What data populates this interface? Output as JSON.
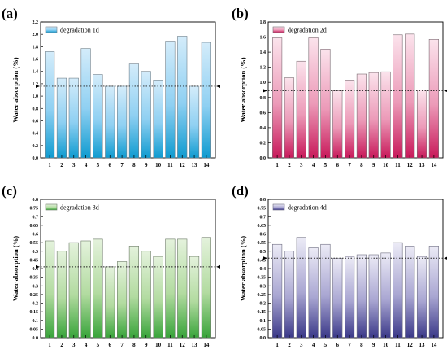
{
  "figure": {
    "panels": [
      {
        "label": "(a)",
        "legend": "degradation 1d",
        "ylabel": "Water absorption (%)"
      },
      {
        "label": "(b)",
        "legend": "degradation 2d",
        "ylabel": "Water absorption (%)"
      },
      {
        "label": "(c)",
        "legend": "degradation 3d",
        "ylabel": "Water absorption (%)"
      },
      {
        "label": "(d)",
        "legend": "degradation 4d",
        "ylabel": "Water absorption (%)"
      }
    ]
  },
  "chart_data": [
    {
      "type": "bar",
      "title": "",
      "panel_label": "(a)",
      "xlabel": "",
      "ylabel": "Water absorption (%)",
      "categories": [
        "1",
        "2",
        "3",
        "4",
        "5",
        "6",
        "7",
        "8",
        "9",
        "10",
        "11",
        "12",
        "13",
        "14"
      ],
      "series": [
        {
          "name": "degradation 1d",
          "values": [
            1.72,
            1.29,
            1.29,
            1.77,
            1.35,
            1.16,
            1.16,
            1.52,
            1.4,
            1.26,
            1.89,
            1.97,
            1.16,
            1.87
          ]
        }
      ],
      "ylim": [
        0,
        2.2
      ],
      "yticks": [
        0.0,
        0.2,
        0.4,
        0.6,
        0.8,
        1.0,
        1.2,
        1.4,
        1.6,
        1.8,
        2.0,
        2.2
      ],
      "ytick_labels": [
        "0.0",
        "0.2",
        "0.4",
        "0.6",
        "0.8",
        "1.0",
        "1.2",
        "1.4",
        "1.6",
        "1.8",
        "2.0",
        "2.2"
      ],
      "reference_line": 1.16,
      "legend_position": "top-left",
      "grid": false,
      "colors": {
        "top": "#d4ecfa",
        "mid": "#8fd0f2",
        "bottom": "#0f9bd0",
        "line": "#6f7f8a"
      }
    },
    {
      "type": "bar",
      "title": "",
      "panel_label": "(b)",
      "xlabel": "",
      "ylabel": "Water absorption (%)",
      "categories": [
        "1",
        "2",
        "3",
        "4",
        "5",
        "6",
        "7",
        "8",
        "9",
        "10",
        "11",
        "12",
        "13",
        "14"
      ],
      "series": [
        {
          "name": "degradation 2d",
          "values": [
            1.59,
            1.06,
            1.28,
            1.59,
            1.44,
            0.89,
            1.03,
            1.11,
            1.13,
            1.14,
            1.63,
            1.64,
            0.9,
            1.57
          ]
        }
      ],
      "ylim": [
        0,
        1.8
      ],
      "yticks": [
        0.0,
        0.2,
        0.4,
        0.6,
        0.8,
        1.0,
        1.2,
        1.4,
        1.6,
        1.8
      ],
      "ytick_labels": [
        "0.0",
        "0.2",
        "0.4",
        "0.6",
        "0.8",
        "1.0",
        "1.2",
        "1.4",
        "1.6",
        "1.8"
      ],
      "reference_line": 0.89,
      "legend_position": "top-left",
      "grid": false,
      "colors": {
        "top": "#fbe3ec",
        "mid": "#ec9ab8",
        "bottom": "#c8195a",
        "line": "#7a6870"
      }
    },
    {
      "type": "bar",
      "title": "",
      "panel_label": "(c)",
      "xlabel": "",
      "ylabel": "Water absorption (%)",
      "categories": [
        "1",
        "2",
        "3",
        "4",
        "5",
        "6",
        "7",
        "8",
        "9",
        "10",
        "11",
        "12",
        "13",
        "14"
      ],
      "series": [
        {
          "name": "degradation 3d",
          "values": [
            0.56,
            0.5,
            0.55,
            0.56,
            0.57,
            0.41,
            0.44,
            0.53,
            0.5,
            0.47,
            0.57,
            0.57,
            0.47,
            0.58
          ]
        }
      ],
      "ylim": [
        0,
        0.8
      ],
      "yticks": [
        0.0,
        0.05,
        0.1,
        0.15,
        0.2,
        0.25,
        0.3,
        0.35,
        0.4,
        0.45,
        0.5,
        0.55,
        0.6,
        0.65,
        0.7,
        0.75,
        0.8
      ],
      "ytick_labels": [
        "0.0",
        "0.05",
        "0.1",
        "0.15",
        "0.2",
        "0.25",
        "0.3",
        "0.35",
        "0.4",
        "0.45",
        "0.5",
        "0.55",
        "0.6",
        "0.65",
        "0.7",
        "0.75",
        "0.8"
      ],
      "reference_line": 0.41,
      "legend_position": "top-left",
      "grid": false,
      "colors": {
        "top": "#e4f2dc",
        "mid": "#b2dba0",
        "bottom": "#38a43a",
        "line": "#6b7a66"
      }
    },
    {
      "type": "bar",
      "title": "",
      "panel_label": "(d)",
      "xlabel": "",
      "ylabel": "Water absorption (%)",
      "categories": [
        "1",
        "2",
        "3",
        "4",
        "5",
        "6",
        "7",
        "8",
        "9",
        "10",
        "11",
        "12",
        "13",
        "14"
      ],
      "series": [
        {
          "name": "degradation 4d",
          "values": [
            0.54,
            0.5,
            0.58,
            0.52,
            0.54,
            0.46,
            0.47,
            0.48,
            0.48,
            0.49,
            0.55,
            0.53,
            0.47,
            0.53
          ]
        }
      ],
      "ylim": [
        0,
        0.8
      ],
      "yticks": [
        0.0,
        0.05,
        0.1,
        0.15,
        0.2,
        0.25,
        0.3,
        0.35,
        0.4,
        0.45,
        0.5,
        0.55,
        0.6,
        0.65,
        0.7,
        0.75,
        0.8
      ],
      "ytick_labels": [
        "0.0",
        "0.05",
        "0.1",
        "0.15",
        "0.2",
        "0.25",
        "0.3",
        "0.35",
        "0.4",
        "0.45",
        "0.5",
        "0.55",
        "0.6",
        "0.65",
        "0.7",
        "0.75",
        "0.8"
      ],
      "reference_line": 0.46,
      "legend_position": "top-left",
      "grid": false,
      "colors": {
        "top": "#ecebf6",
        "mid": "#a9a6d2",
        "bottom": "#3a3888",
        "line": "#6d6c80"
      }
    }
  ]
}
